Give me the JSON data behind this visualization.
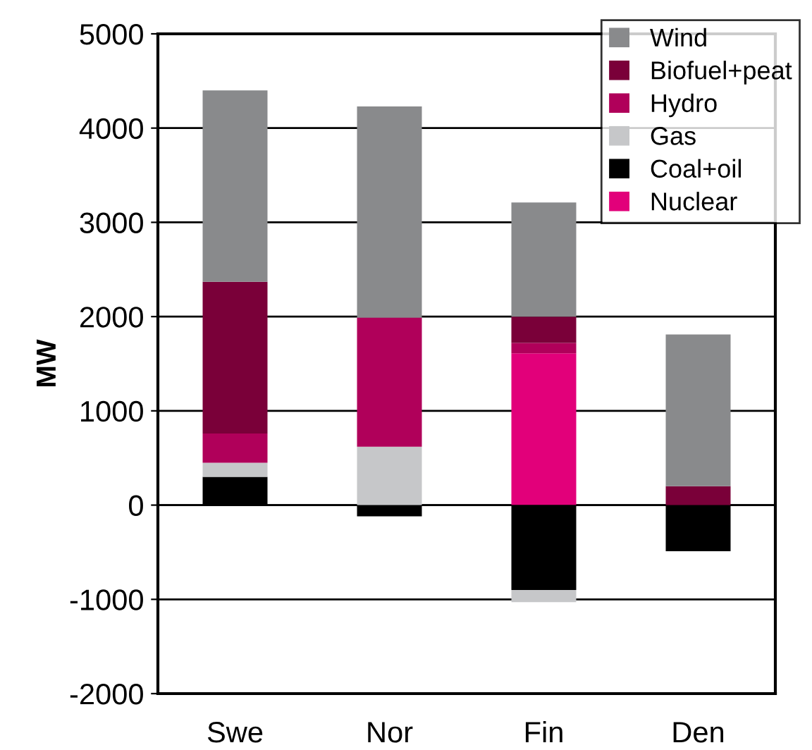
{
  "chart_data": {
    "type": "bar",
    "stacked": true,
    "ylabel": "MW",
    "categories": [
      "Swe",
      "Nor",
      "Fin",
      "Den"
    ],
    "series": [
      {
        "name": "Nuclear",
        "color": "#e2007a",
        "values": [
          0,
          0,
          1610,
          0
        ]
      },
      {
        "name": "Coal+oil",
        "color": "#000000",
        "values": [
          300,
          -120,
          -900,
          -490
        ]
      },
      {
        "name": "Gas",
        "color": "#c6c7c9",
        "values": [
          150,
          620,
          -130,
          0
        ]
      },
      {
        "name": "Hydro",
        "color": "#b0005a",
        "values": [
          310,
          1370,
          110,
          0
        ]
      },
      {
        "name": "Biofuel+peat",
        "color": "#7a0039",
        "values": [
          1610,
          0,
          280,
          200
        ]
      },
      {
        "name": "Wind",
        "color": "#898a8c",
        "values": [
          2030,
          2240,
          1210,
          1610
        ]
      }
    ],
    "ylim": [
      -2000,
      5000
    ],
    "yticks": [
      -2000,
      -1000,
      0,
      1000,
      2000,
      3000,
      4000,
      5000
    ],
    "grid": "y",
    "legend": "top right"
  }
}
